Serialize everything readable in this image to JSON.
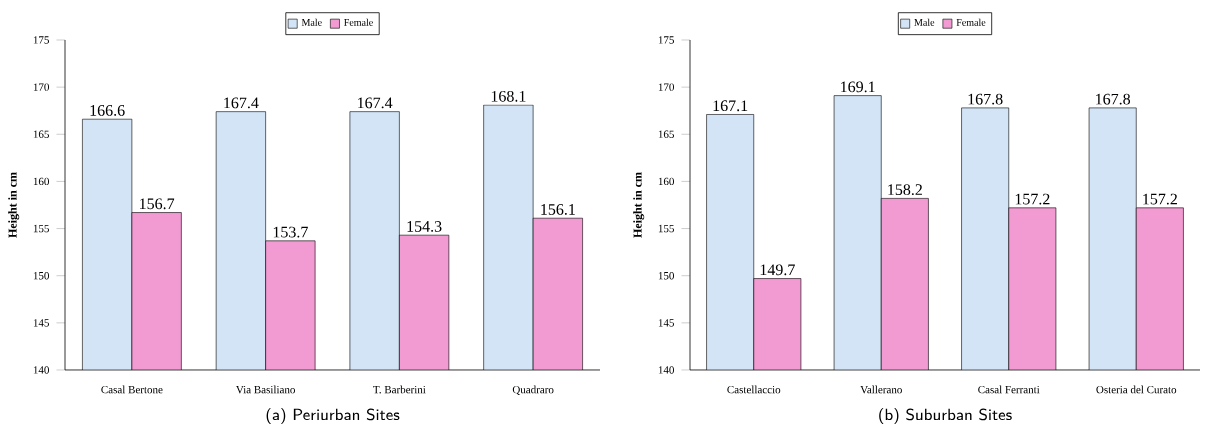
{
  "chart_data": [
    {
      "type": "bar",
      "title": "(a) Periurban Sites",
      "ylabel": "Height in cm",
      "categories": [
        "Casal Bertone",
        "Via Basiliano",
        "T. Barberini",
        "Quadraro"
      ],
      "series": [
        {
          "name": "Male",
          "color": "#d2e4f6",
          "values": [
            166.6,
            167.4,
            167.4,
            168.1
          ]
        },
        {
          "name": "Female",
          "color": "#f29ad2",
          "values": [
            156.7,
            153.7,
            154.3,
            156.1
          ]
        }
      ],
      "ylim": [
        140,
        175
      ],
      "yticks": [
        140,
        145,
        150,
        155,
        160,
        165,
        170,
        175
      ],
      "data_labels": true,
      "legend": "top",
      "grid": false
    },
    {
      "type": "bar",
      "title": "(b) Suburban Sites",
      "ylabel": "Height in cm",
      "categories": [
        "Castellaccio",
        "Vallerano",
        "Casal Ferranti",
        "Osteria del Curato"
      ],
      "series": [
        {
          "name": "Male",
          "color": "#d2e4f6",
          "values": [
            167.1,
            169.1,
            167.8,
            167.8
          ]
        },
        {
          "name": "Female",
          "color": "#f29ad2",
          "values": [
            149.7,
            158.2,
            157.2,
            157.2
          ]
        }
      ],
      "ylim": [
        140,
        175
      ],
      "yticks": [
        140,
        145,
        150,
        155,
        160,
        165,
        170,
        175
      ],
      "data_labels": true,
      "legend": "top",
      "grid": false
    }
  ]
}
